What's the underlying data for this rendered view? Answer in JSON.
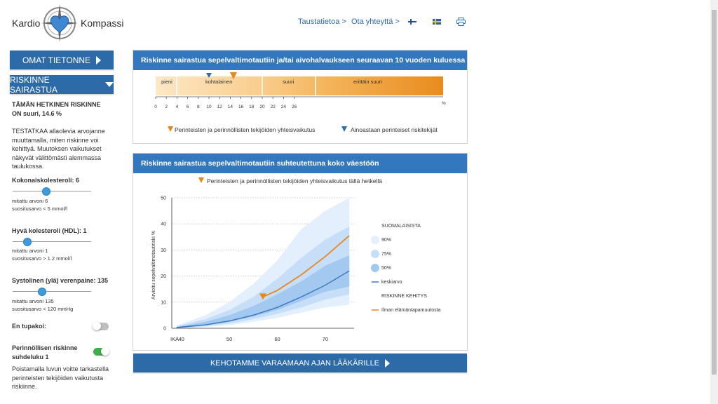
{
  "header": {
    "logo_left": "Kardio",
    "logo_right": "Kompassi",
    "links": [
      "Taustatietoa >",
      "Ota yhteyttä >"
    ]
  },
  "sidebar": {
    "btn_own": "OMAT TIETONNE",
    "btn_risk": "RISKINNE SAIRASTUA",
    "current_risk": "TÄMÄN HETKINEN RISKINNE ON suuri, 14.6 %",
    "intro": "TESTATKAA allaolevia arvojanne muuttamalla, miten riskinne voi kehittyä. Muutoksen vaikutukset näkyvät välittömästi alemmassa taulukossa.",
    "sliders": [
      {
        "label": "Kokonaiskolesteroli: 6",
        "measured": "mitattu arvoni 6",
        "recommended": "suositusarvo < 5 mmol/l",
        "level": 0.42
      },
      {
        "label": "Hyvä kolesteroli (HDL): 1",
        "measured": "mitattu arvoni 1",
        "recommended": "suositusarvo > 1.2 mmol/l",
        "level": 0.18
      },
      {
        "label": "Systolinen (ylä) verenpaine: 135",
        "measured": "mitattu arvoni 135",
        "recommended": "suositusarvo < 120 mmHg",
        "level": 0.37
      }
    ],
    "smoker_label": "En tupakoi:",
    "smoker_on": false,
    "hereditary_label": "Perinnöllisen riskinne suhdeluku 1",
    "hereditary_on": true,
    "hereditary_note": "Poistamalla luvun voitte tarkastella perinteisten tekijöiden vaikutusta riskiinne.",
    "accent": "#2d6aa8",
    "toggle_on_color": "#3fae49"
  },
  "panel1": {
    "title": "Riskinne sairastua sepelvaltimotautiin ja/tai aivohalvaukseen seuraavan 10 vuoden kuluessa",
    "categories": [
      "pieni",
      "kohtalainen",
      "suuri",
      "erittäin suuri"
    ],
    "ticks": [
      "0",
      "2",
      "4",
      "6",
      "8",
      "10",
      "12",
      "14",
      "16",
      "18",
      "20",
      "22",
      "24",
      "26"
    ],
    "unit": "%",
    "marker_combined": 14.6,
    "marker_traditional": 10,
    "legend_combined": "Perinteisten ja perinnöllisten tekijöiden yhteisvaikutus",
    "legend_traditional": "Ainoastaan perinteiset riskitekijät"
  },
  "panel2": {
    "title": "Riskinne sairastua sepelvaltimotautiin suhteutettuna koko väestöön",
    "legend_top": "Perinteisten ja perinnöllisten tekijöiden yhteisvaikutus tällä hetkellä",
    "ylabel": "Arvioitu sepelvaltimotautiriski %",
    "xlabel": "IKÄ",
    "y_ticks": [
      "0",
      "10",
      "20",
      "30",
      "40",
      "50"
    ],
    "x_ticks": [
      "40",
      "50",
      "60",
      "70"
    ],
    "legend_group1": "SUOMALAISISTA",
    "legend_items": [
      "90%",
      "75%",
      "50%",
      "keskiarvo"
    ],
    "legend_group2": "RISKINNE KEHITYS",
    "legend_dev": "Ilman elämäntapamuutosta"
  },
  "cta": "KEHOTAMME VARAAMAAN AJAN LÄÄKÄRILLE",
  "chart_data": {
    "type": "area",
    "xlim": [
      38,
      76
    ],
    "ylim": [
      0,
      50
    ],
    "x": [
      39,
      45,
      50,
      55,
      60,
      65,
      70,
      75
    ],
    "series": [
      {
        "name": "90%",
        "lower": [
          0,
          0.5,
          1.2,
          2.5,
          4,
          6,
          8,
          9
        ],
        "upper": [
          1,
          5,
          10,
          17,
          26,
          38,
          45,
          50
        ]
      },
      {
        "name": "75%",
        "lower": [
          0,
          0.8,
          1.8,
          3.5,
          5.5,
          8,
          11,
          13
        ],
        "upper": [
          0.8,
          3.5,
          7,
          12,
          19,
          27,
          34,
          39
        ]
      },
      {
        "name": "50%",
        "lower": [
          0,
          1,
          2.5,
          4.5,
          7,
          10.5,
          14,
          16
        ],
        "upper": [
          0.5,
          2.5,
          5,
          8.5,
          13,
          18,
          24,
          28
        ]
      },
      {
        "name": "keskiarvo",
        "values": [
          0.3,
          1.3,
          2.8,
          5,
          8,
          12,
          16.5,
          22
        ]
      },
      {
        "name": "Ilman elämäntapamuutosta",
        "x": [
          57,
          60,
          65,
          70,
          75
        ],
        "values": [
          12,
          14.5,
          20.5,
          27.5,
          35.5
        ]
      }
    ]
  }
}
